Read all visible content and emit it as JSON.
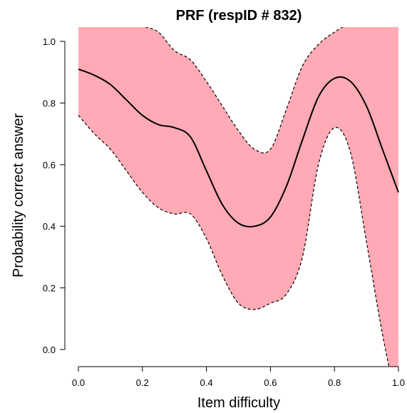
{
  "chart_data": {
    "type": "line",
    "title": "PRF (respID # 832)",
    "xlabel": "Item difficulty",
    "ylabel": "Probability correct answer",
    "xlim": [
      0.0,
      1.0
    ],
    "ylim": [
      0.0,
      1.0
    ],
    "x_ticks": [
      "0.0",
      "0.2",
      "0.4",
      "0.6",
      "0.8",
      "1.0"
    ],
    "y_ticks": [
      "0.0",
      "0.2",
      "0.4",
      "0.6",
      "0.8",
      "1.0"
    ],
    "band_color": "#ffaab4",
    "line_color": "#000000",
    "x": [
      0.0,
      0.05,
      0.1,
      0.15,
      0.2,
      0.25,
      0.3,
      0.35,
      0.4,
      0.45,
      0.5,
      0.55,
      0.6,
      0.65,
      0.7,
      0.75,
      0.8,
      0.85,
      0.9,
      0.95,
      1.0
    ],
    "series": [
      {
        "role": "estimate",
        "style": "solid",
        "values": [
          0.91,
          0.89,
          0.86,
          0.81,
          0.76,
          0.73,
          0.72,
          0.69,
          0.58,
          0.47,
          0.41,
          0.4,
          0.43,
          0.53,
          0.68,
          0.82,
          0.88,
          0.87,
          0.79,
          0.65,
          0.51
        ]
      },
      {
        "role": "upper",
        "style": "dashed",
        "values": [
          1.08,
          1.09,
          1.09,
          1.07,
          1.05,
          1.03,
          0.97,
          0.94,
          0.87,
          0.79,
          0.71,
          0.65,
          0.65,
          0.78,
          0.92,
          0.99,
          1.03,
          1.06,
          1.08,
          1.09,
          1.09
        ]
      },
      {
        "role": "lower",
        "style": "dashed",
        "values": [
          0.76,
          0.7,
          0.65,
          0.58,
          0.51,
          0.46,
          0.44,
          0.44,
          0.36,
          0.24,
          0.15,
          0.13,
          0.15,
          0.18,
          0.3,
          0.6,
          0.72,
          0.64,
          0.35,
          0.05,
          -0.2
        ]
      }
    ]
  }
}
